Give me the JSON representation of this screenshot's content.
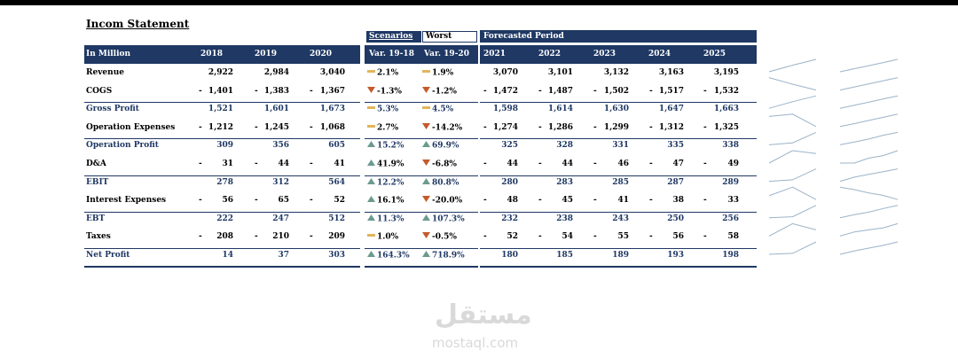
{
  "title": "Incom Statement",
  "scenarios": {
    "label": "Scenarios",
    "selected": "Worst"
  },
  "forecast_label": "Forecasted Period",
  "header": {
    "unit": "In Million",
    "years_hist": [
      "2018",
      "2019",
      "2020"
    ],
    "var_cols": [
      "Var. 19-18",
      "Var. 19-20"
    ],
    "years_fc": [
      "2021",
      "2022",
      "2023",
      "2024",
      "2025"
    ]
  },
  "colors": {
    "header_bg": "#1f3864",
    "up": "#6b9a8e",
    "down": "#c55a2b",
    "flat": "#e1b55c"
  },
  "rows": [
    {
      "label": "Revenue",
      "blue": false,
      "hist": [
        {
          "neg": false,
          "v": "2,922"
        },
        {
          "neg": false,
          "v": "2,984"
        },
        {
          "neg": false,
          "v": "3,040"
        }
      ],
      "var": [
        {
          "icon": "flat",
          "v": "2.1%"
        },
        {
          "icon": "flat",
          "v": "1.9%"
        }
      ],
      "fc": [
        {
          "neg": false,
          "v": "3,070"
        },
        {
          "neg": false,
          "v": "3,101"
        },
        {
          "neg": false,
          "v": "3,132"
        },
        {
          "neg": false,
          "v": "3,163"
        },
        {
          "neg": false,
          "v": "3,195"
        }
      ]
    },
    {
      "label": "COGS",
      "blue": false,
      "hist": [
        {
          "neg": true,
          "v": "1,401"
        },
        {
          "neg": true,
          "v": "1,383"
        },
        {
          "neg": true,
          "v": "1,367"
        }
      ],
      "var": [
        {
          "icon": "down",
          "v": "-1.3%"
        },
        {
          "icon": "down",
          "v": "-1.2%"
        }
      ],
      "fc": [
        {
          "neg": true,
          "v": "1,472"
        },
        {
          "neg": true,
          "v": "1,487"
        },
        {
          "neg": true,
          "v": "1,502"
        },
        {
          "neg": true,
          "v": "1,517"
        },
        {
          "neg": true,
          "v": "1,532"
        }
      ]
    },
    {
      "label": "Gross Profit",
      "blue": true,
      "hist": [
        {
          "neg": false,
          "v": "1,521"
        },
        {
          "neg": false,
          "v": "1,601"
        },
        {
          "neg": false,
          "v": "1,673"
        }
      ],
      "var": [
        {
          "icon": "flat",
          "v": "5.3%"
        },
        {
          "icon": "flat",
          "v": "4.5%"
        }
      ],
      "fc": [
        {
          "neg": false,
          "v": "1,598"
        },
        {
          "neg": false,
          "v": "1,614"
        },
        {
          "neg": false,
          "v": "1,630"
        },
        {
          "neg": false,
          "v": "1,647"
        },
        {
          "neg": false,
          "v": "1,663"
        }
      ]
    },
    {
      "label": "Operation Expenses",
      "blue": false,
      "hist": [
        {
          "neg": true,
          "v": "1,212"
        },
        {
          "neg": true,
          "v": "1,245"
        },
        {
          "neg": true,
          "v": "1,068"
        }
      ],
      "var": [
        {
          "icon": "flat",
          "v": "2.7%"
        },
        {
          "icon": "down",
          "v": "-14.2%"
        }
      ],
      "fc": [
        {
          "neg": true,
          "v": "1,274"
        },
        {
          "neg": true,
          "v": "1,286"
        },
        {
          "neg": true,
          "v": "1,299"
        },
        {
          "neg": true,
          "v": "1,312"
        },
        {
          "neg": true,
          "v": "1,325"
        }
      ]
    },
    {
      "label": "Operation Profit",
      "blue": true,
      "hist": [
        {
          "neg": false,
          "v": "309"
        },
        {
          "neg": false,
          "v": "356"
        },
        {
          "neg": false,
          "v": "605"
        }
      ],
      "var": [
        {
          "icon": "up",
          "v": "15.2%"
        },
        {
          "icon": "up",
          "v": "69.9%"
        }
      ],
      "fc": [
        {
          "neg": false,
          "v": "325"
        },
        {
          "neg": false,
          "v": "328"
        },
        {
          "neg": false,
          "v": "331"
        },
        {
          "neg": false,
          "v": "335"
        },
        {
          "neg": false,
          "v": "338"
        }
      ]
    },
    {
      "label": "D&A",
      "blue": false,
      "hist": [
        {
          "neg": true,
          "v": "31"
        },
        {
          "neg": true,
          "v": "44"
        },
        {
          "neg": true,
          "v": "41"
        }
      ],
      "var": [
        {
          "icon": "up",
          "v": "41.9%"
        },
        {
          "icon": "down",
          "v": "-6.8%"
        }
      ],
      "fc": [
        {
          "neg": true,
          "v": "44"
        },
        {
          "neg": true,
          "v": "44"
        },
        {
          "neg": true,
          "v": "46"
        },
        {
          "neg": true,
          "v": "47"
        },
        {
          "neg": true,
          "v": "49"
        }
      ]
    },
    {
      "label": "EBIT",
      "blue": true,
      "hist": [
        {
          "neg": false,
          "v": "278"
        },
        {
          "neg": false,
          "v": "312"
        },
        {
          "neg": false,
          "v": "564"
        }
      ],
      "var": [
        {
          "icon": "up",
          "v": "12.2%"
        },
        {
          "icon": "up",
          "v": "80.8%"
        }
      ],
      "fc": [
        {
          "neg": false,
          "v": "280"
        },
        {
          "neg": false,
          "v": "283"
        },
        {
          "neg": false,
          "v": "285"
        },
        {
          "neg": false,
          "v": "287"
        },
        {
          "neg": false,
          "v": "289"
        }
      ]
    },
    {
      "label": "Interest Expenses",
      "blue": false,
      "hist": [
        {
          "neg": true,
          "v": "56"
        },
        {
          "neg": true,
          "v": "65"
        },
        {
          "neg": true,
          "v": "52"
        }
      ],
      "var": [
        {
          "icon": "up",
          "v": "16.1%"
        },
        {
          "icon": "down",
          "v": "-20.0%"
        }
      ],
      "fc": [
        {
          "neg": true,
          "v": "48"
        },
        {
          "neg": true,
          "v": "45"
        },
        {
          "neg": true,
          "v": "41"
        },
        {
          "neg": true,
          "v": "38"
        },
        {
          "neg": true,
          "v": "33"
        }
      ]
    },
    {
      "label": "EBT",
      "blue": true,
      "hist": [
        {
          "neg": false,
          "v": "222"
        },
        {
          "neg": false,
          "v": "247"
        },
        {
          "neg": false,
          "v": "512"
        }
      ],
      "var": [
        {
          "icon": "up",
          "v": "11.3%"
        },
        {
          "icon": "up",
          "v": "107.3%"
        }
      ],
      "fc": [
        {
          "neg": false,
          "v": "232"
        },
        {
          "neg": false,
          "v": "238"
        },
        {
          "neg": false,
          "v": "243"
        },
        {
          "neg": false,
          "v": "250"
        },
        {
          "neg": false,
          "v": "256"
        }
      ]
    },
    {
      "label": "Taxes",
      "blue": false,
      "hist": [
        {
          "neg": true,
          "v": "208"
        },
        {
          "neg": true,
          "v": "210"
        },
        {
          "neg": true,
          "v": "209"
        }
      ],
      "var": [
        {
          "icon": "flat",
          "v": "1.0%"
        },
        {
          "icon": "down",
          "v": "-0.5%"
        }
      ],
      "fc": [
        {
          "neg": true,
          "v": "52"
        },
        {
          "neg": true,
          "v": "54"
        },
        {
          "neg": true,
          "v": "55"
        },
        {
          "neg": true,
          "v": "56"
        },
        {
          "neg": true,
          "v": "58"
        }
      ]
    },
    {
      "label": "Net Profit",
      "blue": true,
      "hist": [
        {
          "neg": false,
          "v": "14"
        },
        {
          "neg": false,
          "v": "37"
        },
        {
          "neg": false,
          "v": "303"
        }
      ],
      "var": [
        {
          "icon": "up",
          "v": "164.3%"
        },
        {
          "icon": "up",
          "v": "718.9%"
        }
      ],
      "fc": [
        {
          "neg": false,
          "v": "180"
        },
        {
          "neg": false,
          "v": "185"
        },
        {
          "neg": false,
          "v": "189"
        },
        {
          "neg": false,
          "v": "193"
        },
        {
          "neg": false,
          "v": "198"
        }
      ]
    }
  ],
  "watermark": {
    "arabic": "مستقل",
    "latin": "mostaql.com"
  }
}
